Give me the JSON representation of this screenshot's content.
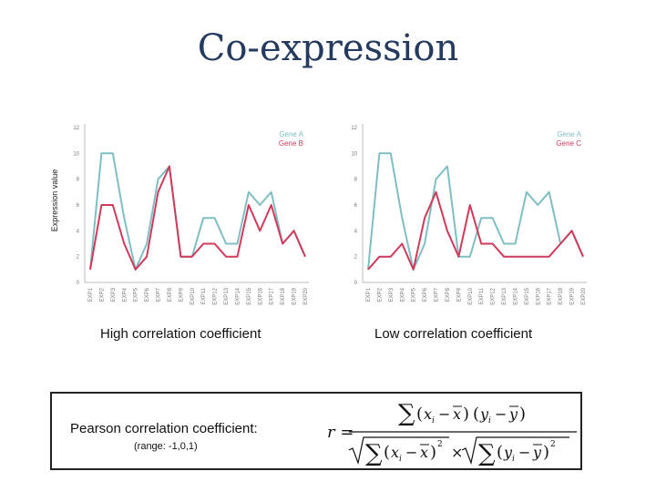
{
  "title": "Co-expression",
  "captions": {
    "left": "High correlation coefficient",
    "right": "Low correlation coefficient"
  },
  "pearson": {
    "label": "Pearson correlation coefficient:",
    "range": "(range: -1,0,1)"
  },
  "formula": {
    "lhs": "r =",
    "sum": "∑",
    "x": "x",
    "y": "y",
    "sub_i": "i",
    "bar": "–",
    "sup2": "2",
    "times": "×"
  },
  "colors": {
    "geneA": "#7fbfc4",
    "geneB": "#d13a5a",
    "axis": "#bbbbbb"
  },
  "chart_data": [
    {
      "type": "line",
      "xlabel": "",
      "ylabel": "Expression value",
      "ylim": [
        0,
        12
      ],
      "yticks": [
        0,
        2,
        4,
        6,
        8,
        10,
        12
      ],
      "categories": [
        "EXP1",
        "EXP2",
        "EXP3",
        "EXP4",
        "EXP5",
        "EXP6",
        "EXP7",
        "EXP8",
        "EXP9",
        "EXP10",
        "EXP11",
        "EXP12",
        "EXP13",
        "EXP14",
        "EXP15",
        "EXP16",
        "EXP17",
        "EXP18",
        "EXP19",
        "EXP20"
      ],
      "legend_position": "top-right",
      "series": [
        {
          "name": "Gene A",
          "color": "#7fbfc4",
          "values": [
            1,
            10,
            10,
            5,
            1,
            3,
            8,
            9,
            2,
            2,
            5,
            5,
            3,
            3,
            7,
            6,
            7,
            3,
            4,
            2
          ]
        },
        {
          "name": "Gene B",
          "color": "#d13a5a",
          "values": [
            1,
            6,
            6,
            3,
            1,
            2,
            7,
            9,
            2,
            2,
            3,
            3,
            2,
            2,
            6,
            4,
            6,
            3,
            4,
            2
          ]
        }
      ]
    },
    {
      "type": "line",
      "xlabel": "",
      "ylabel": "",
      "ylim": [
        0,
        12
      ],
      "yticks": [
        0,
        2,
        4,
        6,
        8,
        10,
        12
      ],
      "categories": [
        "EXP1",
        "EXP2",
        "EXP3",
        "EXP4",
        "EXP5",
        "EXP6",
        "EXP7",
        "EXP8",
        "EXP9",
        "EXP10",
        "EXP11",
        "EXP12",
        "EXP13",
        "EXP14",
        "EXP15",
        "EXP16",
        "EXP17",
        "EXP18",
        "EXP19",
        "EXP20"
      ],
      "legend_position": "top-right",
      "series": [
        {
          "name": "Gene A",
          "color": "#7fbfc4",
          "values": [
            1,
            10,
            10,
            5,
            1,
            3,
            8,
            9,
            2,
            2,
            5,
            5,
            3,
            3,
            7,
            6,
            7,
            3,
            4,
            2
          ]
        },
        {
          "name": "Gene C",
          "color": "#d13a5a",
          "values": [
            1,
            2,
            2,
            3,
            1,
            5,
            7,
            4,
            2,
            6,
            3,
            3,
            2,
            2,
            2,
            2,
            2,
            3,
            4,
            2
          ]
        }
      ]
    }
  ]
}
